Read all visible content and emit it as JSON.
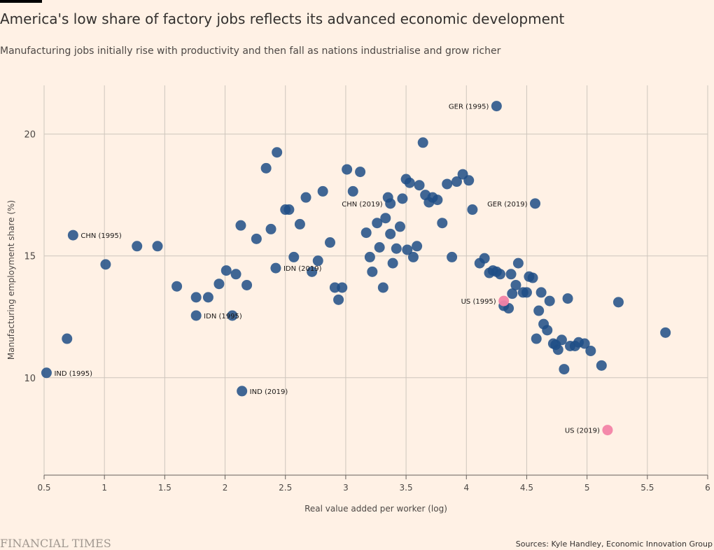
{
  "title": "America's low share of factory jobs reflects its advanced economic development",
  "subtitle": "Manufacturing jobs initially rise with productivity and then fall as nations industrialise and grow richer",
  "brand": "FINANCIAL TIMES",
  "source": "Sources: Kyle Handley, Economic Innovation Group",
  "colors": {
    "background": "#fff1e5",
    "dot": "#1f4e86",
    "highlight": "#f383a6",
    "grid": "#cec6bd"
  },
  "chart_data": {
    "type": "scatter",
    "title": "America's low share of factory jobs reflects its advanced economic development",
    "xlabel": "Real value added per worker (log)",
    "ylabel": "Manufacturing employment share (%)",
    "xlim": [
      0.5,
      6
    ],
    "ylim": [
      6,
      22
    ],
    "xticks": [
      "0.5",
      "1",
      "1.5",
      "2",
      "2.5",
      "3",
      "3.5",
      "4",
      "4.5",
      "5",
      "5.5",
      "6"
    ],
    "yticks": [
      "10",
      "15",
      "20"
    ],
    "grid": true,
    "series": [
      {
        "values": [
          [
            0.69,
            11.6
          ],
          [
            1.01,
            14.65
          ],
          [
            1.27,
            15.4
          ],
          [
            1.44,
            15.4
          ],
          [
            1.6,
            13.75
          ],
          [
            1.76,
            13.3
          ],
          [
            1.86,
            13.3
          ],
          [
            1.95,
            13.85
          ],
          [
            2.01,
            14.4
          ],
          [
            2.09,
            14.25
          ],
          [
            2.13,
            16.25
          ],
          [
            2.18,
            13.8
          ],
          [
            2.26,
            15.7
          ],
          [
            2.34,
            18.6
          ],
          [
            2.38,
            16.1
          ],
          [
            2.43,
            19.25
          ],
          [
            2.5,
            16.9
          ],
          [
            2.53,
            16.9
          ],
          [
            2.57,
            14.95
          ],
          [
            2.62,
            16.3
          ],
          [
            2.67,
            17.4
          ],
          [
            2.72,
            14.35
          ],
          [
            2.77,
            14.8
          ],
          [
            2.81,
            17.65
          ],
          [
            2.87,
            15.55
          ],
          [
            2.91,
            13.7
          ],
          [
            2.94,
            13.2
          ],
          [
            2.97,
            13.7
          ],
          [
            3.01,
            18.55
          ],
          [
            3.06,
            17.65
          ],
          [
            3.12,
            18.45
          ],
          [
            3.17,
            15.95
          ],
          [
            3.2,
            14.95
          ],
          [
            3.22,
            14.35
          ],
          [
            3.26,
            16.35
          ],
          [
            3.28,
            15.35
          ],
          [
            3.31,
            13.7
          ],
          [
            3.33,
            16.55
          ],
          [
            3.35,
            17.4
          ],
          [
            3.37,
            15.9
          ],
          [
            3.39,
            14.7
          ],
          [
            3.42,
            15.3
          ],
          [
            3.45,
            16.2
          ],
          [
            3.47,
            17.35
          ],
          [
            3.5,
            18.15
          ],
          [
            3.51,
            15.25
          ],
          [
            3.53,
            18.0
          ],
          [
            3.56,
            14.95
          ],
          [
            3.59,
            15.4
          ],
          [
            3.61,
            17.9
          ],
          [
            3.64,
            19.65
          ],
          [
            3.66,
            17.5
          ],
          [
            3.69,
            17.2
          ],
          [
            3.72,
            17.4
          ],
          [
            3.76,
            17.3
          ],
          [
            3.8,
            16.35
          ],
          [
            3.84,
            17.95
          ],
          [
            3.88,
            14.95
          ],
          [
            3.92,
            18.05
          ],
          [
            3.97,
            18.35
          ],
          [
            4.02,
            18.1
          ],
          [
            4.05,
            16.9
          ],
          [
            4.11,
            14.7
          ],
          [
            4.15,
            14.9
          ],
          [
            4.19,
            14.3
          ],
          [
            4.22,
            14.4
          ],
          [
            4.25,
            14.35
          ],
          [
            4.28,
            14.25
          ],
          [
            4.31,
            12.95
          ],
          [
            4.35,
            12.85
          ],
          [
            4.37,
            14.25
          ],
          [
            4.38,
            13.45
          ],
          [
            4.41,
            13.8
          ],
          [
            4.43,
            14.7
          ],
          [
            4.47,
            13.5
          ],
          [
            4.5,
            13.5
          ],
          [
            4.52,
            14.15
          ],
          [
            4.55,
            14.1
          ],
          [
            4.58,
            11.6
          ],
          [
            4.6,
            12.75
          ],
          [
            4.62,
            13.5
          ],
          [
            4.64,
            12.2
          ],
          [
            4.67,
            11.95
          ],
          [
            4.69,
            13.15
          ],
          [
            4.72,
            11.4
          ],
          [
            4.74,
            11.35
          ],
          [
            4.76,
            11.15
          ],
          [
            4.79,
            11.55
          ],
          [
            4.81,
            10.35
          ],
          [
            4.84,
            13.25
          ],
          [
            4.86,
            11.3
          ],
          [
            4.9,
            11.3
          ],
          [
            4.93,
            11.45
          ],
          [
            4.98,
            11.4
          ],
          [
            5.03,
            11.1
          ],
          [
            5.12,
            10.5
          ],
          [
            5.26,
            13.1
          ],
          [
            5.65,
            11.85
          ]
        ]
      }
    ],
    "labelled_points": [
      {
        "label": "IND (1995)",
        "x": 0.52,
        "y": 10.2,
        "side": "right",
        "color": "dot"
      },
      {
        "label": "CHN (1995)",
        "x": 0.74,
        "y": 15.85,
        "side": "right",
        "color": "dot"
      },
      {
        "label": "IDN (1995)",
        "x": 1.76,
        "y": 12.55,
        "side": "right",
        "color": "dot"
      },
      {
        "label": "IND (2019)",
        "x": 2.14,
        "y": 9.45,
        "side": "right",
        "color": "dot"
      },
      {
        "label": "IDN (2019)",
        "x": 2.42,
        "y": 14.5,
        "side": "right",
        "color": "dot"
      },
      {
        "label": "CHN (2019)",
        "x": 3.37,
        "y": 17.15,
        "side": "left",
        "color": "dot"
      },
      {
        "label": "GER (1995)",
        "x": 4.25,
        "y": 21.15,
        "side": "left",
        "color": "dot"
      },
      {
        "label": "GER (2019)",
        "x": 4.57,
        "y": 17.15,
        "side": "left",
        "color": "dot"
      },
      {
        "label": "US (1995)",
        "x": 4.31,
        "y": 13.15,
        "side": "left",
        "color": "highlight"
      },
      {
        "label": "US (2019)",
        "x": 5.17,
        "y": 7.85,
        "side": "left",
        "color": "highlight"
      }
    ],
    "extra_points": [
      [
        2.06,
        12.55
      ]
    ]
  }
}
